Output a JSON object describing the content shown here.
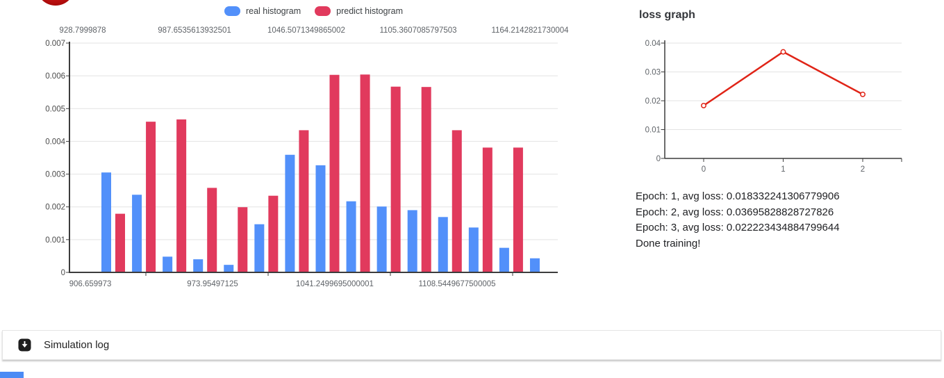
{
  "logo": {
    "icon": "red-circle-logo",
    "color": "#c31414"
  },
  "colors": {
    "real": "#5290fa",
    "predict": "#e13a5d",
    "loss_line": "#e02417",
    "grid": "#e3e3e3",
    "axis": "#3c3c3c",
    "tick_label": "#5f6368",
    "y_label": "#4a4a4a",
    "text": "#202124"
  },
  "chart_data": [
    {
      "type": "bar",
      "title": "",
      "legend_position": "top-center",
      "grid": true,
      "ylim": [
        0,
        0.007
      ],
      "y_tick_labels": [
        "0.007",
        "0.006",
        "0.005",
        "0.004",
        "0.003",
        "0.002",
        "0.001",
        "0"
      ],
      "top_axis_ticks": [
        "928.7999878",
        "987.6535613932501",
        "1046.5071349865002",
        "1105.3607085797503",
        "1164.2142821730004"
      ],
      "bottom_axis_ticks": [
        "906.659973",
        "973.95497125",
        "1041.2499695000001",
        "1108.5449677500005"
      ],
      "series": [
        {
          "name": "real histogram",
          "color": "#5290fa",
          "values": [
            0.00305,
            0.00237,
            0.00048,
            0.0004,
            0.00023,
            0.00147,
            0.00359,
            0.00327,
            0.00217,
            0.00201,
            0.0019,
            0.00169,
            0.00137,
            0.00075,
            0.00043
          ]
        },
        {
          "name": "predict histogram",
          "color": "#e13a5d",
          "values": [
            0.00179,
            0.0046,
            0.00467,
            0.00258,
            0.00199,
            0.00234,
            0.00434,
            0.00603,
            0.00604,
            0.00567,
            0.00566,
            0.00434,
            0.00381,
            0.00381,
            null
          ]
        }
      ]
    },
    {
      "type": "line",
      "title": "loss graph",
      "x": [
        0,
        1,
        2
      ],
      "y": [
        0.018332241306779906,
        0.03695828828727826,
        0.022223434884799644
      ],
      "x_tick_labels": [
        "0",
        "1",
        "2"
      ],
      "y_tick_labels": [
        "0.04",
        "0.03",
        "0.02",
        "0.01",
        "0"
      ],
      "ylim": [
        0,
        0.04
      ],
      "line_color": "#e02417",
      "marker": "open-circle",
      "grid": true,
      "legend_position": "none"
    }
  ],
  "loss_panel": {
    "log_lines": [
      "Epoch: 1, avg loss: 0.018332241306779906",
      "Epoch: 2, avg loss: 0.03695828828727826",
      "Epoch: 3, avg loss: 0.022223434884799644",
      "Done training!"
    ]
  },
  "sim_log": {
    "label": "Simulation log",
    "icon": "collapse-arrow-down-icon"
  }
}
